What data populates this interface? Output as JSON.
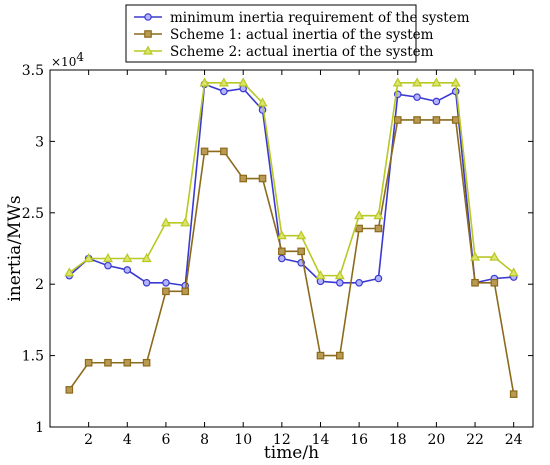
{
  "chart_data": {
    "type": "line",
    "xlabel": "time/h",
    "ylabel": "inertia/MWs",
    "y_exponent_label": "×10",
    "y_exponent_power": "4",
    "xlim": [
      0,
      25
    ],
    "ylim": [
      1,
      3.5
    ],
    "x_ticks": [
      2,
      4,
      6,
      8,
      10,
      12,
      14,
      16,
      18,
      20,
      22,
      24
    ],
    "x_tick_labels": [
      "2",
      "4",
      "6",
      "8",
      "10",
      "12",
      "14",
      "16",
      "18",
      "20",
      "22",
      "24"
    ],
    "y_ticks": [
      1,
      1.5,
      2,
      2.5,
      3,
      3.5
    ],
    "y_tick_labels": [
      "1",
      "1.5",
      "2",
      "2.5",
      "3",
      "3.5"
    ],
    "grid": false,
    "legend_position": "top-center",
    "x": [
      1,
      2,
      3,
      4,
      5,
      6,
      7,
      8,
      9,
      10,
      11,
      12,
      13,
      14,
      15,
      16,
      17,
      18,
      19,
      20,
      21,
      22,
      23,
      24
    ],
    "series": [
      {
        "name": "minimum inertia requirement of the system",
        "color": "#3a3ad0",
        "marker": "circle",
        "values": [
          2.06,
          2.18,
          2.13,
          2.1,
          2.01,
          2.01,
          1.99,
          3.4,
          3.35,
          3.37,
          3.22,
          2.18,
          2.15,
          2.02,
          2.01,
          2.01,
          2.04,
          3.33,
          3.31,
          3.28,
          3.35,
          2.01,
          2.04,
          2.05
        ]
      },
      {
        "name": "Scheme 1: actual inertia of the system",
        "color": "#8c6a1c",
        "marker": "square",
        "values": [
          1.26,
          1.45,
          1.45,
          1.45,
          1.45,
          1.95,
          1.95,
          2.93,
          2.93,
          2.74,
          2.74,
          2.23,
          2.23,
          1.5,
          1.5,
          2.39,
          2.39,
          3.15,
          3.15,
          3.15,
          3.15,
          2.01,
          2.01,
          1.23
        ]
      },
      {
        "name": "Scheme 2: actual inertia of the system",
        "color": "#b8c824",
        "marker": "triangle",
        "values": [
          2.08,
          2.18,
          2.18,
          2.18,
          2.18,
          2.43,
          2.43,
          3.41,
          3.41,
          3.41,
          3.27,
          2.34,
          2.34,
          2.06,
          2.06,
          2.48,
          2.48,
          3.41,
          3.41,
          3.41,
          3.41,
          2.19,
          2.19,
          2.08
        ]
      }
    ]
  }
}
